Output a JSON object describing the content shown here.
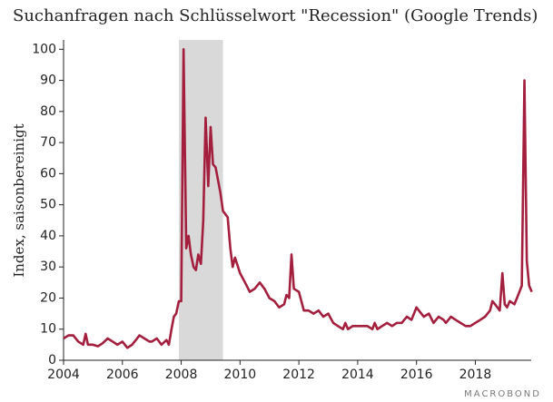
{
  "chart_data": {
    "type": "line",
    "title": "Suchanfragen nach Schlüsselwort \"Recession\" (Google Trends)",
    "y_label": "Index, saisonbereinigt",
    "watermark": "MACROBOND",
    "color": "#a31f3d",
    "shade_color": "#d9d9d9",
    "shade": [
      2007.92,
      2009.42
    ],
    "xlim": [
      2004,
      2019.9
    ],
    "xticks": [
      2004,
      2006,
      2008,
      2010,
      2012,
      2014,
      2016,
      2018
    ],
    "ylim": [
      0,
      103
    ],
    "yticks": [
      0,
      10,
      20,
      30,
      40,
      50,
      60,
      70,
      80,
      90,
      100
    ],
    "x": [
      2004.0,
      2004.17,
      2004.33,
      2004.5,
      2004.67,
      2004.75,
      2004.83,
      2005.0,
      2005.17,
      2005.33,
      2005.5,
      2005.67,
      2005.83,
      2006.0,
      2006.17,
      2006.33,
      2006.5,
      2006.58,
      2006.75,
      2006.92,
      2007.0,
      2007.17,
      2007.33,
      2007.5,
      2007.58,
      2007.67,
      2007.75,
      2007.83,
      2007.92,
      2008.0,
      2008.08,
      2008.17,
      2008.25,
      2008.33,
      2008.42,
      2008.5,
      2008.58,
      2008.67,
      2008.75,
      2008.83,
      2008.92,
      2009.0,
      2009.08,
      2009.17,
      2009.25,
      2009.33,
      2009.42,
      2009.5,
      2009.58,
      2009.67,
      2009.75,
      2009.83,
      2010.0,
      2010.17,
      2010.33,
      2010.5,
      2010.67,
      2010.83,
      2011.0,
      2011.17,
      2011.33,
      2011.5,
      2011.58,
      2011.67,
      2011.75,
      2011.83,
      2012.0,
      2012.17,
      2012.33,
      2012.5,
      2012.67,
      2012.83,
      2013.0,
      2013.17,
      2013.33,
      2013.5,
      2013.58,
      2013.67,
      2013.83,
      2014.0,
      2014.33,
      2014.5,
      2014.58,
      2014.67,
      2014.83,
      2015.0,
      2015.17,
      2015.33,
      2015.5,
      2015.67,
      2015.83,
      2016.0,
      2016.08,
      2016.25,
      2016.42,
      2016.58,
      2016.75,
      2016.92,
      2017.0,
      2017.17,
      2017.33,
      2017.5,
      2017.67,
      2017.83,
      2018.0,
      2018.17,
      2018.33,
      2018.5,
      2018.58,
      2018.67,
      2018.75,
      2018.83,
      2018.92,
      2019.0,
      2019.08,
      2019.17,
      2019.33,
      2019.5,
      2019.58,
      2019.67,
      2019.75,
      2019.83,
      2019.92
    ],
    "values": [
      7,
      8,
      8,
      6,
      5,
      8.5,
      5,
      5,
      4.5,
      5.5,
      7,
      6,
      5,
      6,
      4,
      5,
      7,
      8,
      7,
      6,
      6,
      7,
      5,
      6.5,
      5,
      10,
      14,
      15,
      19,
      19,
      100,
      36,
      40,
      34,
      30,
      29,
      34,
      31,
      45,
      78,
      56,
      75,
      63,
      62,
      58,
      54,
      48,
      47,
      46,
      36,
      30,
      33,
      28,
      25,
      22,
      23,
      25,
      23,
      20,
      19,
      17,
      18,
      21,
      20,
      34,
      23,
      22,
      16,
      16,
      15,
      16,
      14,
      15,
      12,
      11,
      10,
      12,
      10,
      11,
      11,
      11,
      10,
      12,
      10,
      11,
      12,
      11,
      12,
      12,
      14,
      13,
      17,
      16,
      14,
      15,
      12,
      14,
      13,
      12,
      14,
      13,
      12,
      11,
      11,
      12,
      13,
      14,
      16,
      19,
      18,
      17,
      16,
      28,
      18,
      17,
      19,
      18,
      22,
      24,
      90,
      32,
      24,
      22
    ]
  }
}
